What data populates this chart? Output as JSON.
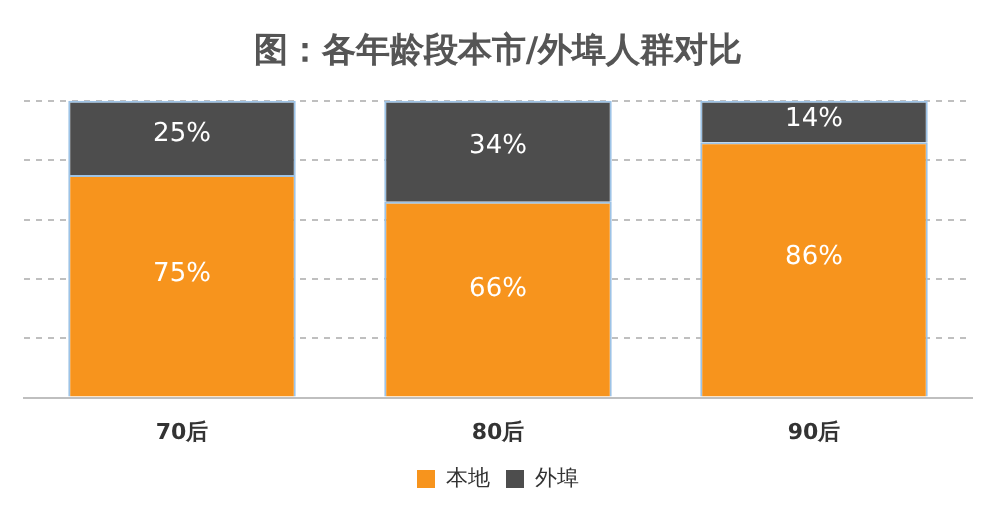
{
  "chart_data": {
    "type": "bar",
    "title": "图：各年龄段本市/外埠人群对比",
    "categories": [
      "70后",
      "80后",
      "90后"
    ],
    "stacked": true,
    "ylim": [
      0,
      100
    ],
    "yticks": [
      {
        "value": 0,
        "label": null
      },
      {
        "value": 20,
        "label": null
      },
      {
        "value": 40,
        "label": null
      },
      {
        "value": 60,
        "label": null
      },
      {
        "value": 80,
        "label": null
      },
      {
        "value": 100,
        "label": null
      }
    ],
    "tick_labels": "x",
    "grid": "y",
    "legend": "bottom",
    "series": [
      {
        "name": "本地",
        "color": "#f7941d",
        "values": [
          75,
          66,
          86
        ],
        "value_labels": [
          "75%",
          "66%",
          "86%"
        ]
      },
      {
        "name": "外埠",
        "color": "#4d4d4d",
        "values": [
          25,
          34,
          14
        ],
        "value_labels": [
          "25%",
          "34%",
          "14%"
        ]
      }
    ]
  }
}
